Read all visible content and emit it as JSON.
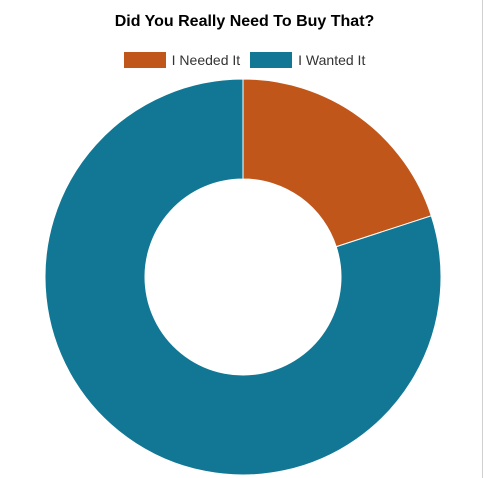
{
  "chart_data": {
    "type": "pie",
    "title": "Did You Really Need To Buy That?",
    "categories": [
      "I Needed It",
      "I Wanted It"
    ],
    "values": [
      20,
      80
    ],
    "colors": [
      "#c1561a",
      "#117794"
    ],
    "legend_placement": "top",
    "donut": true
  }
}
